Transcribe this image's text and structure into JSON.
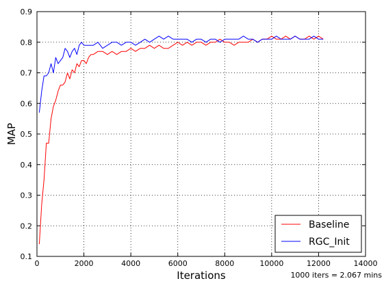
{
  "chart_data": {
    "type": "line",
    "xlabel": "Iterations",
    "ylabel": "MAP",
    "xlim": [
      0,
      14000
    ],
    "ylim": [
      0.1,
      0.9
    ],
    "xticks": [
      0,
      2000,
      4000,
      6000,
      8000,
      10000,
      12000,
      14000
    ],
    "xtick_labels": [
      "0",
      "2000",
      "4000",
      "6000",
      "8000",
      "10000",
      "12000",
      "14000"
    ],
    "yticks": [
      0.1,
      0.2,
      0.3,
      0.4,
      0.5,
      0.6,
      0.7,
      0.8,
      0.9
    ],
    "ytick_labels": [
      "0.1",
      "0.2",
      "0.3",
      "0.4",
      "0.5",
      "0.6",
      "0.7",
      "0.8",
      "0.9"
    ],
    "grid": true,
    "legend_position": "bottom-right",
    "annotation": "1000 iters = 2.067 mins",
    "series": [
      {
        "name": "Baseline",
        "color": "#ff0000",
        "x": [
          100,
          200,
          300,
          400,
          500,
          600,
          700,
          800,
          900,
          1000,
          1100,
          1200,
          1300,
          1400,
          1500,
          1600,
          1700,
          1800,
          1900,
          2000,
          2100,
          2200,
          2300,
          2400,
          2600,
          2800,
          3000,
          3200,
          3400,
          3600,
          3800,
          4000,
          4200,
          4400,
          4600,
          4800,
          5000,
          5200,
          5400,
          5600,
          5800,
          6000,
          6200,
          6400,
          6600,
          6800,
          7000,
          7200,
          7400,
          7600,
          7800,
          8000,
          8200,
          8400,
          8600,
          8800,
          9000,
          9200,
          9400,
          9600,
          9800,
          10000,
          10200,
          10400,
          10600,
          10800,
          11000,
          11200,
          11400,
          11600,
          11800,
          12000,
          12200
        ],
        "y": [
          0.14,
          0.27,
          0.35,
          0.47,
          0.47,
          0.55,
          0.59,
          0.61,
          0.64,
          0.66,
          0.66,
          0.67,
          0.7,
          0.68,
          0.71,
          0.7,
          0.73,
          0.72,
          0.74,
          0.74,
          0.73,
          0.75,
          0.76,
          0.76,
          0.77,
          0.77,
          0.76,
          0.77,
          0.76,
          0.77,
          0.77,
          0.78,
          0.77,
          0.78,
          0.78,
          0.79,
          0.78,
          0.79,
          0.78,
          0.78,
          0.79,
          0.8,
          0.79,
          0.8,
          0.79,
          0.8,
          0.8,
          0.79,
          0.8,
          0.8,
          0.81,
          0.8,
          0.8,
          0.79,
          0.8,
          0.8,
          0.8,
          0.81,
          0.8,
          0.81,
          0.81,
          0.82,
          0.81,
          0.81,
          0.82,
          0.81,
          0.82,
          0.81,
          0.81,
          0.82,
          0.81,
          0.82,
          0.81
        ]
      },
      {
        "name": "RGC_Init",
        "color": "#0000ff",
        "x": [
          100,
          200,
          300,
          400,
          500,
          600,
          700,
          800,
          900,
          1000,
          1100,
          1200,
          1300,
          1400,
          1500,
          1600,
          1700,
          1800,
          1900,
          2000,
          2200,
          2400,
          2600,
          2800,
          3000,
          3200,
          3400,
          3600,
          3800,
          4000,
          4200,
          4400,
          4600,
          4800,
          5000,
          5200,
          5400,
          5600,
          5800,
          6000,
          6200,
          6400,
          6600,
          6800,
          7000,
          7200,
          7400,
          7600,
          7800,
          8000,
          8200,
          8400,
          8600,
          8800,
          9000,
          9200,
          9400,
          9600,
          9800,
          10000,
          10200,
          10400,
          10600,
          10800,
          11000,
          11200,
          11400,
          11600,
          11800,
          12000,
          12200
        ],
        "y": [
          0.57,
          0.64,
          0.69,
          0.69,
          0.7,
          0.73,
          0.7,
          0.75,
          0.73,
          0.74,
          0.75,
          0.78,
          0.77,
          0.75,
          0.77,
          0.78,
          0.76,
          0.79,
          0.8,
          0.79,
          0.79,
          0.79,
          0.8,
          0.78,
          0.79,
          0.8,
          0.8,
          0.79,
          0.8,
          0.8,
          0.79,
          0.8,
          0.81,
          0.8,
          0.81,
          0.82,
          0.81,
          0.82,
          0.81,
          0.81,
          0.81,
          0.81,
          0.8,
          0.81,
          0.81,
          0.8,
          0.81,
          0.81,
          0.8,
          0.81,
          0.81,
          0.81,
          0.81,
          0.82,
          0.81,
          0.81,
          0.8,
          0.81,
          0.81,
          0.81,
          0.82,
          0.81,
          0.81,
          0.81,
          0.82,
          0.81,
          0.81,
          0.81,
          0.82,
          0.81,
          0.81
        ]
      }
    ]
  }
}
